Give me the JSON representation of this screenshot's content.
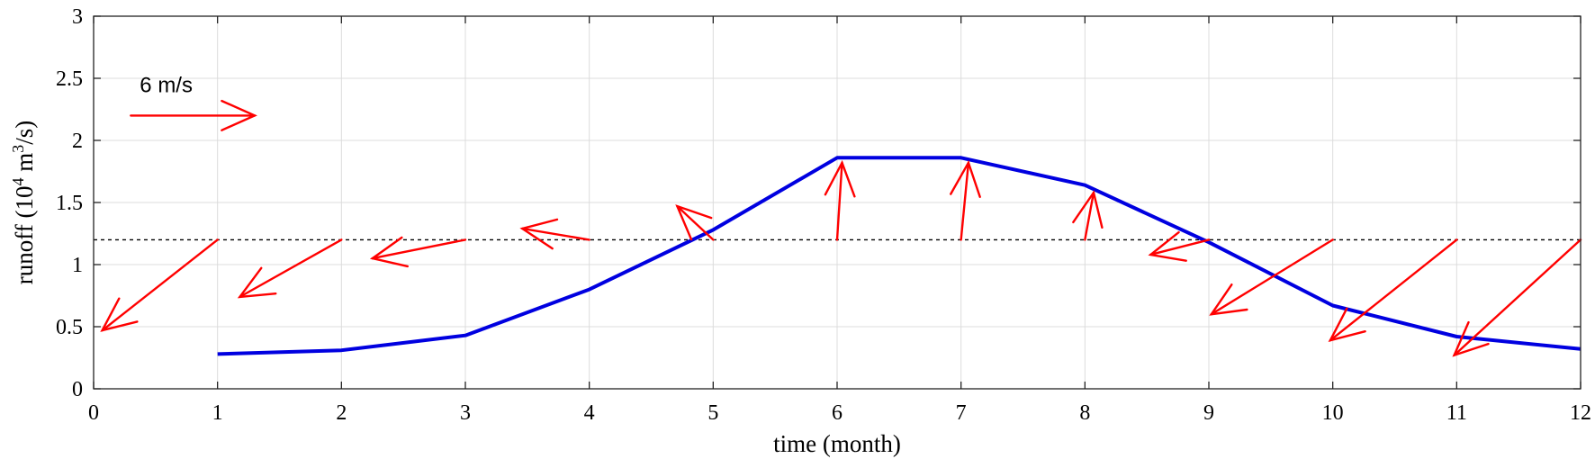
{
  "chart_data": {
    "type": "line",
    "title": "",
    "xlabel": "time (month)",
    "ylabel_parts": {
      "prefix": "runoff (10",
      "exp1": "4",
      "mid": " m",
      "exp2": "3",
      "suffix": "/s)"
    },
    "xlim": [
      0,
      12
    ],
    "ylim": [
      0,
      3
    ],
    "xticks": [
      "0",
      "1",
      "2",
      "3",
      "4",
      "5",
      "6",
      "7",
      "8",
      "9",
      "10",
      "11",
      "12"
    ],
    "yticks": [
      "0",
      "0.5",
      "1",
      "1.5",
      "2",
      "2.5",
      "3"
    ],
    "grid": true,
    "series": [
      {
        "color": "#0000e0",
        "x": [
          1,
          2,
          3,
          4,
          5,
          6,
          7,
          8,
          9,
          10,
          11,
          12
        ],
        "y": [
          0.28,
          0.31,
          0.43,
          0.8,
          1.28,
          1.86,
          1.86,
          1.64,
          1.18,
          0.67,
          0.42,
          0.32
        ]
      }
    ],
    "reference_line": {
      "y": 1.2,
      "style": "dotted",
      "color": "#000000"
    },
    "wind_vectors": {
      "color": "#ff0000",
      "base_y": 1.2,
      "scale": {
        "label": "6 m/s",
        "speed": 6,
        "dx": 1.0,
        "dy": 0.0,
        "origin_x": 0.3,
        "origin_y": 2.2
      },
      "vectors": [
        {
          "x": 1,
          "dx": -0.93,
          "dy": -0.73
        },
        {
          "x": 2,
          "dx": -0.82,
          "dy": -0.46
        },
        {
          "x": 3,
          "dx": -0.75,
          "dy": -0.15
        },
        {
          "x": 4,
          "dx": -0.54,
          "dy": 0.09
        },
        {
          "x": 5,
          "dx": -0.29,
          "dy": 0.27
        },
        {
          "x": 6,
          "dx": 0.04,
          "dy": 0.62
        },
        {
          "x": 7,
          "dx": 0.06,
          "dy": 0.62
        },
        {
          "x": 8,
          "dx": 0.07,
          "dy": 0.38
        },
        {
          "x": 9,
          "dx": -0.47,
          "dy": -0.12
        },
        {
          "x": 10,
          "dx": -0.98,
          "dy": -0.6
        },
        {
          "x": 11,
          "dx": -1.02,
          "dy": -0.81
        },
        {
          "x": 12,
          "dx": -1.02,
          "dy": -0.93
        }
      ]
    }
  }
}
